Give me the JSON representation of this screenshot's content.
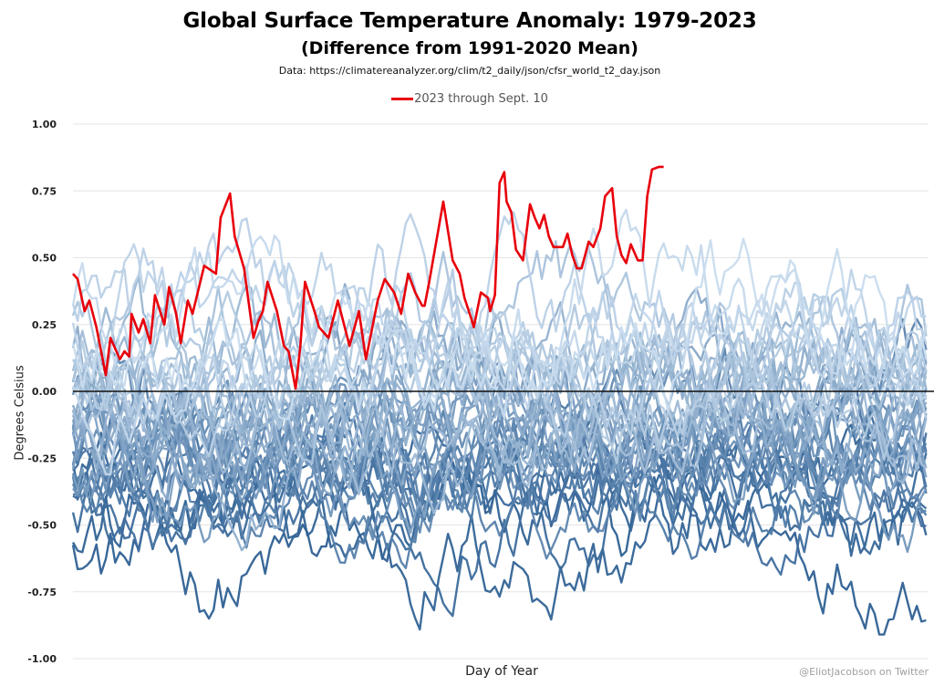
{
  "chart_data": {
    "type": "line",
    "title": "Global Surface Temperature Anomaly: 1979-2023",
    "subtitle": "(Difference from 1991-2020 Mean)",
    "source": "Data: https://climatereanalyzer.org/clim/t2_daily/json/cfsr_world_t2_day.json",
    "xlabel": "Day of Year",
    "ylabel": "Degrees Celsius",
    "credit": "@EliotJacobson on Twitter",
    "ylim": [
      -1.0,
      1.0
    ],
    "xlim": [
      1,
      366
    ],
    "yticks": [
      "1.00",
      "0.75",
      "0.50",
      "0.25",
      "0.00",
      "-0.25",
      "-0.50",
      "-0.75",
      "-1.00"
    ],
    "ytick_values": [
      1.0,
      0.75,
      0.5,
      0.25,
      0.0,
      -0.25,
      -0.5,
      -0.75,
      -1.0
    ],
    "grid": true,
    "legend_position": "top-center",
    "legend": [
      {
        "label": "2023 through Sept. 10",
        "color": "#e8000b"
      }
    ],
    "background_series": {
      "years": [
        1979,
        2022
      ],
      "count": 44,
      "color_oldest": "#2e6094",
      "color_newest": "#c9dcee",
      "mean_trend_first_year": -0.45,
      "mean_trend_last_year": 0.22,
      "note": "One blue line per year 1979-2022, daily anomaly; darker = older"
    },
    "series": [
      {
        "name": "2023 through Sept. 10",
        "color": "#e8000b",
        "x": [
          1,
          3,
          6,
          8,
          11,
          15,
          17,
          21,
          23,
          25,
          26,
          29,
          31,
          34,
          36,
          40,
          42,
          45,
          47,
          50,
          52,
          57,
          62,
          64,
          68,
          70,
          74,
          78,
          80,
          82,
          84,
          88,
          91,
          93,
          96,
          98,
          100,
          104,
          106,
          110,
          114,
          119,
          123,
          126,
          131,
          134,
          138,
          141,
          144,
          147,
          150,
          151,
          153,
          156,
          159,
          163,
          166,
          168,
          171,
          172,
          175,
          178,
          179,
          181,
          183,
          185,
          186,
          188,
          190,
          193,
          196,
          198,
          200,
          202,
          204,
          206,
          210,
          212,
          214,
          216,
          218,
          221,
          223,
          226,
          228,
          231,
          233,
          235,
          237,
          239,
          242,
          244,
          246,
          248,
          251,
          253
        ],
        "values": [
          0.44,
          0.42,
          0.3,
          0.34,
          0.24,
          0.06,
          0.2,
          0.12,
          0.15,
          0.13,
          0.29,
          0.22,
          0.27,
          0.18,
          0.36,
          0.25,
          0.39,
          0.29,
          0.18,
          0.34,
          0.29,
          0.47,
          0.44,
          0.65,
          0.74,
          0.58,
          0.46,
          0.2,
          0.26,
          0.3,
          0.41,
          0.3,
          0.17,
          0.15,
          0.01,
          0.17,
          0.41,
          0.3,
          0.24,
          0.2,
          0.34,
          0.17,
          0.3,
          0.12,
          0.34,
          0.42,
          0.37,
          0.29,
          0.44,
          0.37,
          0.32,
          0.32,
          0.41,
          0.56,
          0.71,
          0.49,
          0.44,
          0.35,
          0.27,
          0.24,
          0.37,
          0.35,
          0.3,
          0.36,
          0.78,
          0.82,
          0.71,
          0.67,
          0.53,
          0.49,
          0.7,
          0.65,
          0.61,
          0.66,
          0.58,
          0.54,
          0.54,
          0.59,
          0.51,
          0.46,
          0.46,
          0.56,
          0.54,
          0.61,
          0.73,
          0.76,
          0.58,
          0.51,
          0.48,
          0.55,
          0.49,
          0.49,
          0.73,
          0.83,
          0.84,
          0.84
        ]
      }
    ]
  }
}
